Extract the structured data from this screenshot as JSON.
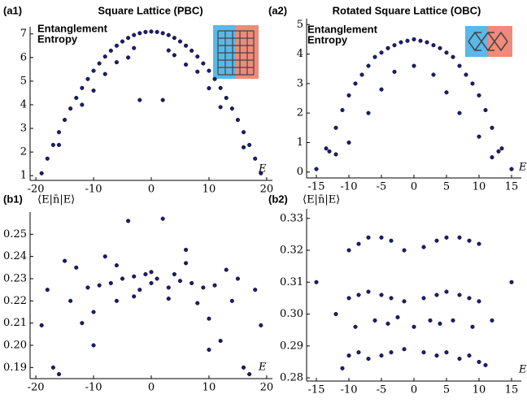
{
  "chart_data": [
    {
      "type": "scatter",
      "panel_label": "(a1)",
      "title": "Square Lattice (PBC)",
      "ylabel_lines": [
        "Entanglement",
        "Entropy"
      ],
      "xlabel": "E",
      "color": "#1c1c78",
      "x": [
        -19,
        -18,
        -17,
        -16,
        -15,
        -14,
        -13,
        -12,
        -11,
        -10,
        -9,
        -8,
        -7,
        -6,
        -5,
        -4,
        -3,
        -2,
        -1,
        0,
        1,
        2,
        3,
        4,
        5,
        6,
        7,
        8,
        9,
        10,
        11,
        12,
        13,
        14,
        15,
        16,
        17,
        18,
        19,
        -16,
        -12,
        -8,
        -4,
        -2,
        2,
        4,
        8,
        12,
        16,
        -10,
        10,
        -6,
        6,
        -3,
        3
      ],
      "values": [
        1.1,
        1.72,
        2.3,
        2.84,
        3.36,
        3.84,
        4.29,
        4.71,
        5.09,
        5.44,
        5.75,
        6.04,
        6.29,
        6.5,
        6.68,
        6.83,
        6.95,
        7.03,
        7.08,
        7.1,
        7.08,
        7.03,
        6.95,
        6.83,
        6.68,
        6.5,
        6.29,
        6.04,
        5.75,
        5.44,
        5.09,
        4.71,
        4.29,
        3.84,
        3.36,
        2.84,
        2.3,
        1.72,
        1.1,
        2.3,
        4.0,
        5.3,
        6.0,
        4.2,
        4.2,
        6.1,
        5.4,
        3.9,
        2.2,
        4.6,
        4.7,
        5.8,
        5.7,
        6.4,
        6.3
      ],
      "xlim": [
        -21,
        21
      ],
      "ylim": [
        0.8,
        7.3
      ],
      "xticks": [
        -20,
        -10,
        0,
        10,
        20
      ],
      "yticks": [
        1,
        2,
        3,
        4,
        5,
        6,
        7
      ]
    },
    {
      "type": "scatter",
      "panel_label": "(a2)",
      "title": "Rotated Square Lattice (OBC)",
      "ylabel_lines": [
        "Entanglement",
        "Entropy"
      ],
      "xlabel": "E",
      "color": "#1c1c78",
      "x": [
        -15,
        -13.5,
        -13,
        -12,
        -11,
        -10,
        -9,
        -8,
        -7,
        -6,
        -5,
        -4,
        -3,
        -2,
        -1,
        0,
        1,
        2,
        3,
        4,
        5,
        6,
        7,
        8,
        9,
        10,
        11,
        12,
        13,
        13.5,
        15,
        -10,
        -7,
        -5,
        -3,
        0,
        3,
        5,
        7,
        10,
        -12,
        12
      ],
      "values": [
        0.1,
        0.8,
        0.7,
        1.5,
        2.1,
        2.6,
        3.0,
        3.3,
        3.6,
        3.9,
        4.05,
        4.2,
        4.3,
        4.4,
        4.45,
        4.5,
        4.45,
        4.4,
        4.3,
        4.2,
        4.05,
        3.9,
        3.6,
        3.3,
        3.0,
        2.6,
        2.1,
        1.5,
        0.7,
        0.8,
        0.1,
        1.0,
        2.0,
        2.8,
        3.4,
        3.6,
        3.3,
        2.7,
        2.0,
        1.2,
        0.6,
        0.5
      ],
      "xlim": [
        -16.5,
        16.5
      ],
      "ylim": [
        -0.2,
        5.2
      ],
      "xticks": [
        -15,
        -10,
        -5,
        0,
        5,
        10,
        15
      ],
      "yticks": [
        0,
        1,
        2,
        3,
        4,
        5
      ]
    },
    {
      "type": "scatter",
      "panel_label": "(b1)",
      "ylabel": "⟨E|n̄|E⟩",
      "xlabel": "E",
      "color": "#1c1c78",
      "x": [
        -19,
        -18,
        -17,
        -16,
        -15,
        -14,
        -13,
        -12,
        -11,
        -10,
        -9,
        -8,
        -7,
        -6,
        -5,
        -4,
        -3,
        -2,
        -1,
        0,
        1,
        2,
        3,
        4,
        5,
        6,
        7,
        8,
        9,
        10,
        11,
        12,
        13,
        14,
        15,
        16,
        17,
        18,
        19,
        -10,
        10,
        -6,
        6,
        0,
        -3,
        3
      ],
      "values": [
        0.209,
        0.225,
        0.19,
        0.187,
        0.238,
        0.22,
        0.235,
        0.21,
        0.226,
        0.215,
        0.227,
        0.24,
        0.228,
        0.22,
        0.23,
        0.256,
        0.231,
        0.225,
        0.232,
        0.233,
        0.23,
        0.257,
        0.226,
        0.232,
        0.229,
        0.243,
        0.228,
        0.219,
        0.226,
        0.212,
        0.227,
        0.202,
        0.234,
        0.22,
        0.23,
        0.19,
        0.187,
        0.225,
        0.209,
        0.2,
        0.198,
        0.236,
        0.237,
        0.228,
        0.222,
        0.221
      ],
      "xlim": [
        -21,
        21
      ],
      "ylim": [
        0.185,
        0.26
      ],
      "xticks": [
        -20,
        -10,
        0,
        10,
        20
      ],
      "yticks": [
        0.19,
        {
          "value": 0.2,
          "label": "0.20"
        },
        0.21,
        0.22,
        0.23,
        0.24,
        0.25
      ]
    },
    {
      "type": "scatter",
      "panel_label": "(b2)",
      "ylabel": "⟨E|n̄|E⟩",
      "xlabel": "E",
      "color": "#1c1c78",
      "x": [
        -10,
        -8.5,
        -7,
        -5,
        -3.5,
        -1.5,
        1.5,
        3.5,
        5,
        7,
        8.5,
        10,
        -10,
        -8.5,
        -7,
        -5,
        -3.5,
        -1.5,
        1.5,
        3.5,
        5,
        7,
        8.5,
        10,
        -10,
        -8.5,
        -7,
        -5,
        -3.5,
        -1.5,
        1.5,
        3.5,
        5,
        7,
        8.5,
        10,
        -9,
        -6,
        -4,
        -2.5,
        0,
        2.5,
        4,
        6,
        9,
        -15,
        15,
        -12,
        12,
        -11,
        11
      ],
      "values": [
        0.32,
        0.322,
        0.324,
        0.324,
        0.323,
        0.32,
        0.321,
        0.323,
        0.324,
        0.324,
        0.323,
        0.322,
        0.305,
        0.306,
        0.307,
        0.306,
        0.305,
        0.304,
        0.305,
        0.306,
        0.307,
        0.306,
        0.305,
        0.304,
        0.287,
        0.288,
        0.286,
        0.287,
        0.288,
        0.289,
        0.288,
        0.287,
        0.288,
        0.286,
        0.287,
        0.285,
        0.296,
        0.298,
        0.297,
        0.299,
        0.296,
        0.298,
        0.297,
        0.298,
        0.296,
        0.31,
        0.31,
        0.3,
        0.298,
        0.283,
        0.284
      ],
      "xlim": [
        -16.5,
        16.5
      ],
      "ylim": [
        0.279,
        0.333
      ],
      "xticks": [
        -15,
        -10,
        -5,
        0,
        5,
        10,
        15
      ],
      "yticks": [
        0.28,
        0.29,
        {
          "value": 0.3,
          "label": "0.30"
        },
        0.31,
        0.32,
        0.33
      ]
    }
  ]
}
